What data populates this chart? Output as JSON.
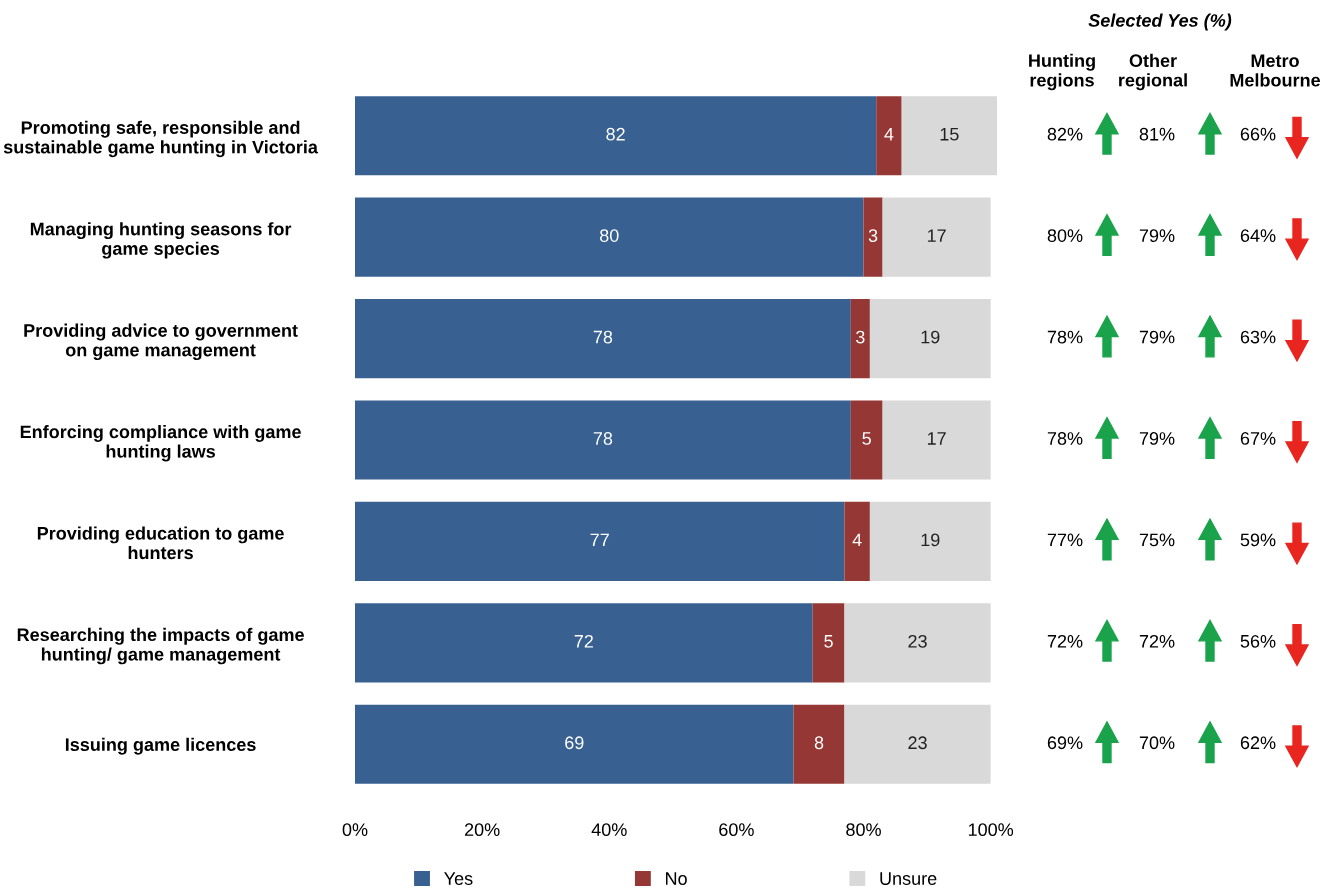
{
  "chart_data": {
    "type": "bar",
    "orientation": "horizontal",
    "stacked": true,
    "categories": [
      "Promoting safe, responsible and\nsustainable game hunting in Victoria",
      "Managing hunting seasons for\ngame species",
      "Providing advice to government\non game management",
      "Enforcing compliance with game\nhunting laws",
      "Providing education to game\nhunters",
      "Researching the impacts of game\nhunting/ game management",
      "Issuing game licences"
    ],
    "series": [
      {
        "name": "Yes",
        "color": "#386192",
        "values": [
          82,
          80,
          78,
          78,
          77,
          72,
          69
        ]
      },
      {
        "name": "No",
        "color": "#953735",
        "values": [
          4,
          3,
          3,
          5,
          4,
          5,
          8
        ]
      },
      {
        "name": "Unsure",
        "color": "#d9d9d9",
        "values": [
          15,
          17,
          19,
          17,
          19,
          23,
          23
        ]
      }
    ],
    "xlim": [
      0,
      101
    ],
    "xticks": [
      {
        "value": 0,
        "label": "0%"
      },
      {
        "value": 20,
        "label": "20%"
      },
      {
        "value": 40,
        "label": "40%"
      },
      {
        "value": 60,
        "label": "60%"
      },
      {
        "value": 80,
        "label": "80%"
      },
      {
        "value": 100,
        "label": "100%"
      }
    ],
    "data_labels": true,
    "legend": "bottom",
    "grid": false,
    "annotations": [
      "Selected Yes (%)",
      "Hunting\nregions",
      "Other\nregional",
      "Metro\nMelbourne",
      "82%",
      "81%",
      "66%",
      "80%",
      "79%",
      "64%",
      "78%",
      "79%",
      "63%",
      "78%",
      "79%",
      "67%",
      "77%",
      "75%",
      "59%",
      "72%",
      "72%",
      "56%",
      "69%",
      "70%",
      "62%"
    ]
  }
}
